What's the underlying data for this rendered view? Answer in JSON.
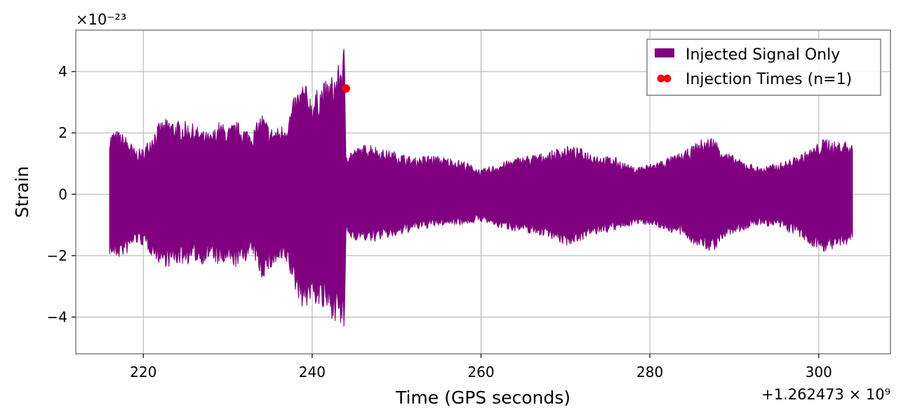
{
  "chart_data": {
    "type": "line",
    "title": "",
    "xlabel": "Time (GPS seconds)",
    "ylabel": "Strain",
    "x_offset_label": "+1.262473 × 10⁹",
    "y_scale_label": "×10⁻²³",
    "xlim": [
      212,
      308.5
    ],
    "ylim": [
      -5.2,
      5.35
    ],
    "grid": true,
    "legend_position": "top-right",
    "x_ticks": [
      220,
      240,
      260,
      280,
      300
    ],
    "x_tick_labels": [
      "220",
      "240",
      "260",
      "280",
      "300"
    ],
    "y_ticks": [
      -4,
      -2,
      0,
      2,
      4
    ],
    "y_tick_labels": [
      "−4",
      "−2",
      "0",
      "2",
      "4"
    ],
    "series": [
      {
        "name": "Injected Signal Only",
        "color": "#800080",
        "kind": "envelope",
        "x": [
          216.0,
          216.5,
          217.0,
          218.0,
          219.0,
          220.0,
          221.0,
          222.0,
          223.0,
          224.0,
          225.0,
          226.0,
          227.0,
          228.0,
          229.0,
          230.0,
          231.0,
          232.0,
          233.0,
          234.0,
          235.0,
          236.0,
          237.0,
          238.0,
          239.0,
          240.0,
          241.0,
          242.0,
          243.0,
          243.8,
          244.0,
          245.0,
          246.0,
          247.0,
          248.0,
          250.0,
          252.0,
          254.0,
          256.0,
          258.0,
          260.0,
          262.0,
          264.0,
          266.0,
          268.0,
          270.0,
          272.0,
          274.0,
          276.0,
          278.0,
          280.0,
          282.0,
          284.0,
          286.0,
          287.5,
          289.0,
          291.0,
          293.0,
          295.0,
          297.0,
          299.0,
          301.0,
          302.0,
          303.0,
          304.0
        ],
        "upper": [
          2.0,
          2.1,
          2.1,
          1.9,
          1.5,
          1.5,
          2.0,
          2.4,
          2.5,
          2.4,
          2.4,
          2.3,
          2.1,
          2.0,
          2.4,
          2.2,
          2.4,
          2.2,
          2.1,
          2.7,
          2.2,
          2.2,
          2.4,
          3.3,
          3.7,
          3.2,
          3.6,
          3.8,
          4.1,
          4.9,
          1.4,
          1.5,
          1.6,
          1.7,
          1.5,
          1.4,
          1.2,
          1.3,
          1.2,
          1.1,
          0.8,
          1.0,
          1.2,
          1.3,
          1.4,
          1.6,
          1.5,
          1.3,
          1.2,
          0.9,
          1.0,
          1.2,
          1.4,
          1.8,
          1.9,
          1.4,
          1.1,
          0.9,
          1.0,
          1.2,
          1.5,
          1.9,
          1.7,
          1.8,
          1.6
        ],
        "lower": [
          -2.0,
          -2.1,
          -2.1,
          -2.0,
          -1.6,
          -1.7,
          -2.0,
          -2.3,
          -2.4,
          -2.3,
          -2.3,
          -2.2,
          -2.3,
          -2.1,
          -2.4,
          -2.3,
          -2.4,
          -2.2,
          -2.0,
          -2.8,
          -2.5,
          -2.3,
          -2.3,
          -3.2,
          -3.8,
          -3.5,
          -3.8,
          -4.0,
          -4.2,
          -4.7,
          -1.4,
          -1.5,
          -1.5,
          -1.6,
          -1.5,
          -1.4,
          -1.2,
          -1.1,
          -1.0,
          -1.0,
          -0.9,
          -1.1,
          -1.2,
          -1.3,
          -1.4,
          -1.7,
          -1.5,
          -1.3,
          -1.2,
          -1.0,
          -1.0,
          -1.2,
          -1.4,
          -1.8,
          -1.9,
          -1.4,
          -1.2,
          -1.0,
          -1.1,
          -1.3,
          -1.7,
          -1.9,
          -1.8,
          -1.8,
          -1.5
        ]
      },
      {
        "name": "Injection Times (n=1)",
        "color": "#ff0000",
        "kind": "scatter",
        "points": [
          {
            "x": 244.0,
            "y": 3.45
          }
        ]
      }
    ]
  }
}
